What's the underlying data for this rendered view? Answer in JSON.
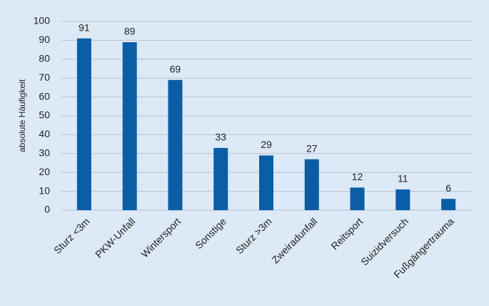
{
  "chart_data": {
    "type": "bar",
    "y_label": "absolute Häufigkeit",
    "categories": [
      "Sturz <3m",
      "PKW-Unfall",
      "Wintersport",
      "Sonstige",
      "Sturz >3m",
      "Zweiradunfall",
      "Reitsport",
      "Suizidversuch",
      "Fußgängertrauma"
    ],
    "values": [
      91,
      89,
      69,
      33,
      29,
      27,
      12,
      11,
      6
    ],
    "color": "#0a5ea8",
    "ylim": [
      0,
      100
    ],
    "yticks": [
      0,
      10,
      20,
      30,
      40,
      50,
      60,
      70,
      80,
      90,
      100
    ],
    "grid": true
  }
}
